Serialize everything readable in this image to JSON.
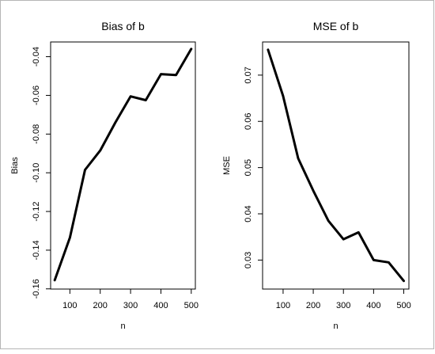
{
  "chart_data": [
    {
      "type": "line",
      "title": "Bias of  b",
      "xlabel": "n",
      "ylabel": "Bias",
      "x": [
        50,
        100,
        150,
        200,
        250,
        300,
        350,
        400,
        450,
        500
      ],
      "series": [
        {
          "values": [
            -0.1555,
            -0.1335,
            -0.0985,
            -0.0885,
            -0.074,
            -0.0605,
            -0.0625,
            -0.049,
            -0.0495,
            -0.036
          ]
        }
      ],
      "xticks": [
        100,
        200,
        300,
        400,
        500
      ],
      "yticks": [
        -0.16,
        -0.14,
        -0.12,
        -0.1,
        -0.08,
        -0.06,
        -0.04
      ],
      "ytick_labels": [
        "-0.16",
        "-0.14",
        "-0.12",
        "-0.10",
        "-0.08",
        "-0.06",
        "-0.04"
      ],
      "xlim": [
        36.5,
        513.5
      ],
      "ylim": [
        -0.1601,
        -0.0324
      ],
      "grid": false
    },
    {
      "type": "line",
      "title": "MSE of  b",
      "xlabel": "n",
      "ylabel": "MSE",
      "x": [
        50,
        100,
        150,
        200,
        250,
        300,
        350,
        400,
        450,
        500
      ],
      "series": [
        {
          "values": [
            0.0755,
            0.0655,
            0.052,
            0.045,
            0.0385,
            0.0345,
            0.036,
            0.03,
            0.0295,
            0.0255
          ]
        }
      ],
      "xticks": [
        100,
        200,
        300,
        400,
        500
      ],
      "yticks": [
        0.03,
        0.04,
        0.05,
        0.06,
        0.07
      ],
      "ytick_labels": [
        "0.03",
        "0.04",
        "0.05",
        "0.06",
        "0.07"
      ],
      "xlim": [
        32,
        517
      ],
      "ylim": [
        0.02373,
        0.07717
      ],
      "grid": false
    }
  ]
}
